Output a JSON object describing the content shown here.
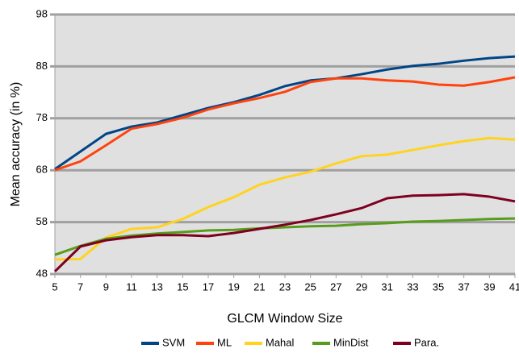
{
  "chart_data": {
    "type": "line",
    "x_label": "GLCM Window Size",
    "y_label": "Mean accuracy  (in %)",
    "x": [
      5,
      7,
      9,
      11,
      13,
      15,
      17,
      19,
      21,
      23,
      25,
      27,
      29,
      31,
      33,
      35,
      37,
      39,
      41
    ],
    "xlim": [
      5,
      41
    ],
    "xticks": [
      5,
      7,
      9,
      11,
      13,
      15,
      17,
      19,
      21,
      23,
      25,
      27,
      29,
      31,
      33,
      35,
      37,
      39,
      41
    ],
    "ylim": [
      48,
      98
    ],
    "yticks": [
      48,
      58,
      68,
      78,
      88,
      98
    ],
    "grid": true,
    "legend": "bottom",
    "series": [
      {
        "name": "SVM",
        "color": "#004586",
        "values": [
          68.2,
          71.6,
          75.0,
          76.4,
          77.2,
          78.6,
          80.0,
          81.1,
          82.5,
          84.2,
          85.3,
          85.7,
          86.5,
          87.4,
          88.1,
          88.5,
          89.1,
          89.6,
          89.9
        ]
      },
      {
        "name": "ML",
        "color": "#ff420e",
        "values": [
          68.0,
          69.7,
          72.8,
          76.0,
          76.9,
          78.1,
          79.7,
          80.9,
          81.9,
          83.1,
          85.0,
          85.7,
          85.7,
          85.3,
          85.1,
          84.5,
          84.3,
          85.0,
          85.9
        ]
      },
      {
        "name": "Mahal",
        "color": "#ffd320",
        "values": [
          50.8,
          50.9,
          55.0,
          56.7,
          57.0,
          58.6,
          60.9,
          62.8,
          65.2,
          66.6,
          67.7,
          69.3,
          70.7,
          71.0,
          71.9,
          72.8,
          73.6,
          74.2,
          73.9
        ]
      },
      {
        "name": "MinDist",
        "color": "#579d1c",
        "values": [
          51.7,
          53.4,
          54.8,
          55.4,
          55.8,
          56.1,
          56.4,
          56.5,
          56.8,
          57.0,
          57.2,
          57.3,
          57.6,
          57.8,
          58.1,
          58.2,
          58.4,
          58.6,
          58.7
        ]
      },
      {
        "name": "Para.",
        "color": "#7e0021",
        "values": [
          48.5,
          53.3,
          54.5,
          55.1,
          55.5,
          55.5,
          55.3,
          55.9,
          56.7,
          57.5,
          58.4,
          59.5,
          60.7,
          62.6,
          63.1,
          63.2,
          63.4,
          62.9,
          62.0
        ]
      }
    ]
  }
}
